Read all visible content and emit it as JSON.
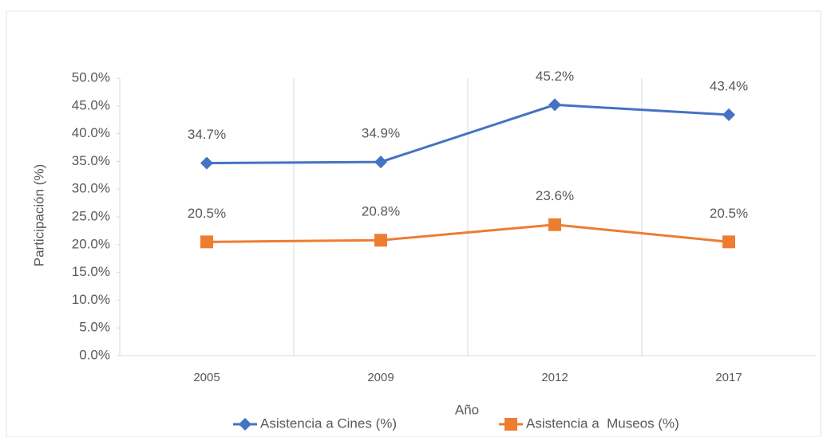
{
  "chart_data": {
    "type": "line",
    "categories": [
      "2005",
      "2009",
      "2012",
      "2017"
    ],
    "series": [
      {
        "name": "Asistencia a Cines (%)",
        "color": "#4472c4",
        "marker": "diamond",
        "values": [
          34.7,
          34.9,
          45.2,
          43.4
        ],
        "value_labels": [
          "34.7%",
          "34.9%",
          "45.2%",
          "43.4%"
        ]
      },
      {
        "name": "Asistencia a  Museos (%)",
        "color": "#ed7d31",
        "marker": "square",
        "values": [
          20.5,
          20.8,
          23.6,
          20.5
        ],
        "value_labels": [
          "20.5%",
          "20.8%",
          "23.6%",
          "20.5%"
        ]
      }
    ],
    "x_label": "Año",
    "y_label": "Participación (%)",
    "ylim": [
      0,
      50
    ],
    "yticks": [
      {
        "value": 0,
        "label": "0.0%"
      },
      {
        "value": 5,
        "label": "5.0%"
      },
      {
        "value": 10,
        "label": "10.0%"
      },
      {
        "value": 15,
        "label": "15.0%"
      },
      {
        "value": 20,
        "label": "20.0%"
      },
      {
        "value": 25,
        "label": "25.0%"
      },
      {
        "value": 30,
        "label": "30.0%"
      },
      {
        "value": 35,
        "label": "35.0%"
      },
      {
        "value": 40,
        "label": "40.0%"
      },
      {
        "value": 45,
        "label": "45.0%"
      },
      {
        "value": 50,
        "label": "50.0%"
      }
    ],
    "legend": "bottom"
  }
}
